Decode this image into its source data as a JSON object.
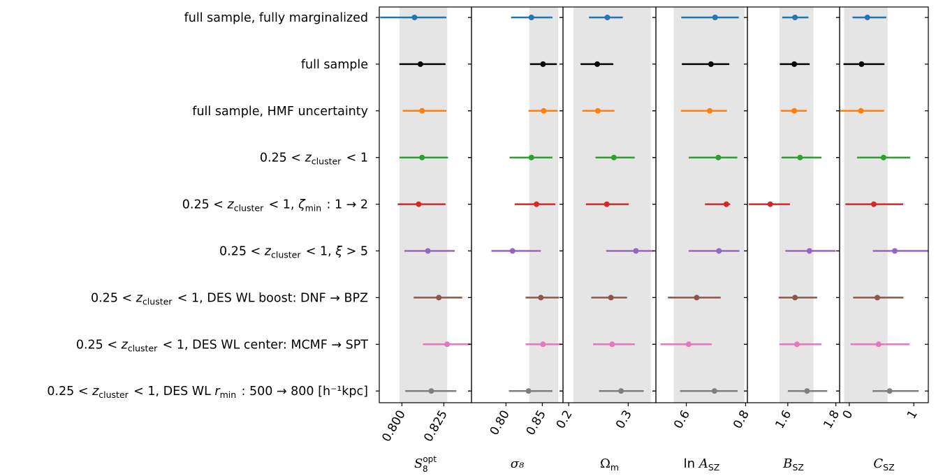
{
  "chart_data": {
    "type": "scatter",
    "rows": [
      {
        "label": "full sample, fully marginalized",
        "color": "#1f77b4"
      },
      {
        "label": "full sample",
        "color": "#000000"
      },
      {
        "label": "full sample, HMF uncertainty",
        "color": "#ff7f0e"
      },
      {
        "label": "0.25 < z_cluster < 1",
        "color": "#2ca02c"
      },
      {
        "label": "0.25 < z_cluster < 1, ζ_min : 1 → 2",
        "color": "#d62728"
      },
      {
        "label": "0.25 < z_cluster < 1, ξ > 5",
        "color": "#9467bd"
      },
      {
        "label": "0.25 < z_cluster < 1, DES WL boost: DNF → BPZ",
        "color": "#8c564b"
      },
      {
        "label": "0.25 < z_cluster < 1, DES WL center: MCMF → SPT",
        "color": "#e377c2"
      },
      {
        "label": "0.25 < z_cluster < 1, DES WL r_min : 500 → 800 [h⁻¹kpc]",
        "color": "#7f7f7f"
      }
    ],
    "panels": [
      {
        "label": "S₈ᵒᵖᵗ",
        "xlim": [
          0.7865,
          0.8415
        ],
        "band": [
          0.7985,
          0.827
        ],
        "ticks": [
          0.8,
          0.825
        ],
        "tick_labels": [
          "0.800",
          "0.825"
        ],
        "points": [
          {
            "value": 0.8075,
            "lo": 0.787,
            "hi": 0.8265
          },
          {
            "value": 0.811,
            "lo": 0.7985,
            "hi": 0.826
          },
          {
            "value": 0.812,
            "lo": 0.8005,
            "hi": 0.8265
          },
          {
            "value": 0.812,
            "lo": 0.7985,
            "hi": 0.8275
          },
          {
            "value": 0.81,
            "lo": 0.7975,
            "hi": 0.826
          },
          {
            "value": 0.8155,
            "lo": 0.8015,
            "hi": 0.8315
          },
          {
            "value": 0.822,
            "lo": 0.807,
            "hi": 0.836
          },
          {
            "value": 0.827,
            "lo": 0.8125,
            "hi": 0.841
          },
          {
            "value": 0.8175,
            "lo": 0.802,
            "hi": 0.8325
          }
        ]
      },
      {
        "label": "σ₈",
        "xlim": [
          0.7525,
          0.8785
        ],
        "band": [
          0.832,
          0.872
        ],
        "ticks": [
          0.8,
          0.85
        ],
        "tick_labels": [
          "0.80",
          "0.85"
        ],
        "points": [
          {
            "value": 0.835,
            "lo": 0.807,
            "hi": 0.864
          },
          {
            "value": 0.851,
            "lo": 0.833,
            "hi": 0.87
          },
          {
            "value": 0.852,
            "lo": 0.831,
            "hi": 0.871
          },
          {
            "value": 0.835,
            "lo": 0.805,
            "hi": 0.864
          },
          {
            "value": 0.842,
            "lo": 0.812,
            "hi": 0.868
          },
          {
            "value": 0.809,
            "lo": 0.78,
            "hi": 0.848
          },
          {
            "value": 0.848,
            "lo": 0.827,
            "hi": 0.873
          },
          {
            "value": 0.851,
            "lo": 0.827,
            "hi": 0.877
          },
          {
            "value": 0.831,
            "lo": 0.804,
            "hi": 0.864
          }
        ]
      },
      {
        "label": "Ω_m",
        "xlim": [
          0.1905,
          0.3465
        ],
        "band": [
          0.208,
          0.338
        ],
        "ticks": [
          0.2,
          0.3
        ],
        "tick_labels": [
          "0.2",
          "0.3"
        ],
        "points": [
          {
            "value": 0.265,
            "lo": 0.234,
            "hi": 0.291
          },
          {
            "value": 0.248,
            "lo": 0.22,
            "hi": 0.275
          },
          {
            "value": 0.249,
            "lo": 0.223,
            "hi": 0.277
          },
          {
            "value": 0.276,
            "lo": 0.245,
            "hi": 0.311
          },
          {
            "value": 0.264,
            "lo": 0.229,
            "hi": 0.301
          },
          {
            "value": 0.313,
            "lo": 0.263,
            "hi": 0.342
          },
          {
            "value": 0.271,
            "lo": 0.238,
            "hi": 0.298
          },
          {
            "value": 0.273,
            "lo": 0.241,
            "hi": 0.311
          },
          {
            "value": 0.288,
            "lo": 0.251,
            "hi": 0.326
          }
        ]
      },
      {
        "label": "ln A_SZ",
        "xlim": [
          0.4975,
          0.806
        ],
        "band": [
          0.5575,
          0.796
        ],
        "ticks": [
          0.6,
          0.8
        ],
        "tick_labels": [
          "0.6",
          "0.8"
        ],
        "points": [
          {
            "value": 0.697,
            "lo": 0.583,
            "hi": 0.777
          },
          {
            "value": 0.683,
            "lo": 0.585,
            "hi": 0.745
          },
          {
            "value": 0.679,
            "lo": 0.582,
            "hi": 0.737
          },
          {
            "value": 0.708,
            "lo": 0.608,
            "hi": 0.772
          },
          {
            "value": 0.735,
            "lo": 0.663,
            "hi": 0.748
          },
          {
            "value": 0.71,
            "lo": 0.608,
            "hi": 0.779
          },
          {
            "value": 0.635,
            "lo": 0.538,
            "hi": 0.716
          },
          {
            "value": 0.608,
            "lo": 0.513,
            "hi": 0.686
          },
          {
            "value": 0.695,
            "lo": 0.579,
            "hi": 0.773
          }
        ]
      },
      {
        "label": "B_SZ",
        "xlim": [
          1.432,
          1.8155
        ],
        "band": [
          1.565,
          1.707
        ],
        "ticks": [
          1.6,
          1.8
        ],
        "tick_labels": [
          "1.6",
          "1.8"
        ],
        "points": [
          {
            "value": 1.63,
            "lo": 1.577,
            "hi": 1.686
          },
          {
            "value": 1.627,
            "lo": 1.567,
            "hi": 1.691
          },
          {
            "value": 1.627,
            "lo": 1.571,
            "hi": 1.679
          },
          {
            "value": 1.651,
            "lo": 1.574,
            "hi": 1.74
          },
          {
            "value": 1.527,
            "lo": 1.438,
            "hi": 1.609
          },
          {
            "value": 1.69,
            "lo": 1.59,
            "hi": 1.799
          },
          {
            "value": 1.63,
            "lo": 1.562,
            "hi": 1.722
          },
          {
            "value": 1.638,
            "lo": 1.565,
            "hi": 1.74
          },
          {
            "value": 1.68,
            "lo": 1.6,
            "hi": 1.764
          }
        ]
      },
      {
        "label": "C_SZ",
        "xlim": [
          -0.15,
          1.225
        ],
        "band": [
          -0.08,
          0.595
        ],
        "ticks": [
          0,
          1
        ],
        "tick_labels": [
          "0",
          "1"
        ],
        "points": [
          {
            "value": 0.28,
            "lo": 0.05,
            "hi": 0.575
          },
          {
            "value": 0.19,
            "lo": -0.09,
            "hi": 0.545
          },
          {
            "value": 0.18,
            "lo": -0.14,
            "hi": 0.54
          },
          {
            "value": 0.53,
            "lo": 0.12,
            "hi": 0.945
          },
          {
            "value": 0.38,
            "lo": -0.06,
            "hi": 0.835
          },
          {
            "value": 0.705,
            "lo": 0.365,
            "hi": 1.225
          },
          {
            "value": 0.435,
            "lo": 0.06,
            "hi": 0.84
          },
          {
            "value": 0.455,
            "lo": 0.02,
            "hi": 0.935
          },
          {
            "value": 0.625,
            "lo": 0.36,
            "hi": 1.075
          }
        ]
      }
    ]
  }
}
